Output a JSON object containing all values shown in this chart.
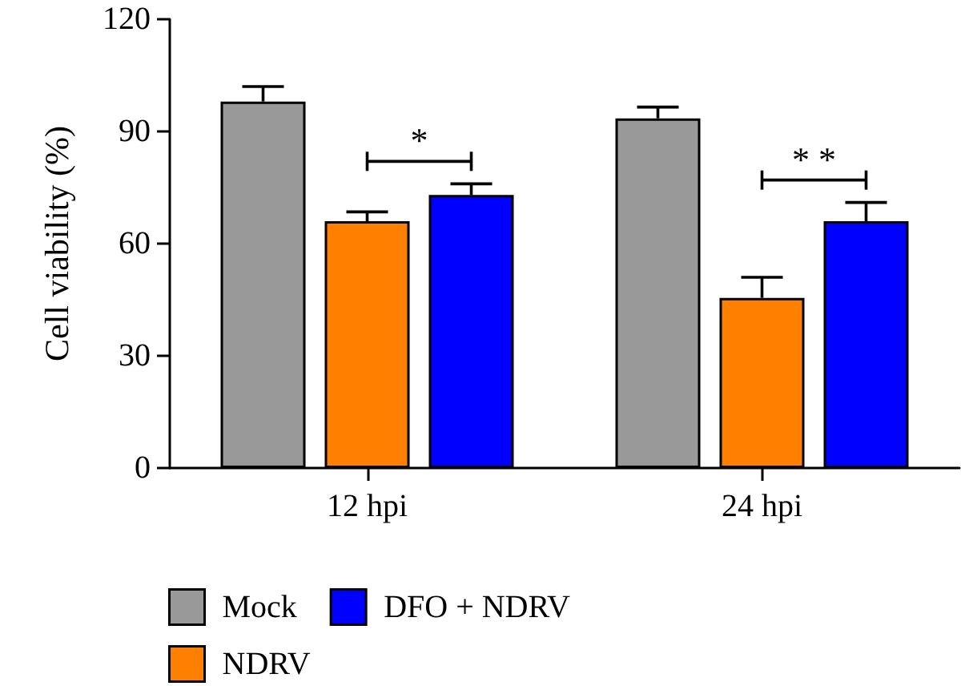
{
  "chart_data": {
    "type": "bar",
    "ylabel": "Cell viability (%)",
    "categories": [
      "12 hpi",
      "24 hpi"
    ],
    "series": [
      {
        "name": "Mock",
        "color": "#999999",
        "values": [
          98,
          93.5
        ],
        "errors": [
          [
            98,
            102
          ],
          [
            93.5,
            96.5
          ]
        ]
      },
      {
        "name": "NDRV",
        "color": "#ff8000",
        "values": [
          66,
          45.5
        ],
        "errors": [
          [
            66,
            68.5
          ],
          [
            45.5,
            51
          ]
        ]
      },
      {
        "name": "DFO + NDRV",
        "color": "#0000ff",
        "values": [
          73,
          66
        ],
        "errors": [
          [
            73,
            76
          ],
          [
            66,
            71
          ]
        ]
      }
    ],
    "ylim": [
      0,
      120
    ],
    "yticks": [
      0,
      30,
      60,
      90,
      120
    ],
    "grid": false,
    "legend": "bottom",
    "annotations": [
      "*",
      "* *"
    ]
  }
}
